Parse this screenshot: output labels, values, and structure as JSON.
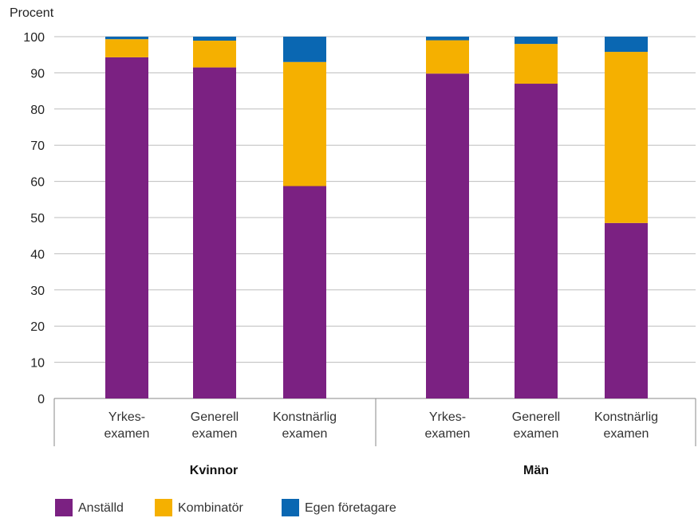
{
  "chart_data": {
    "type": "bar",
    "stacked": true,
    "ylabel": "Procent",
    "ylim": [
      0,
      100
    ],
    "yticks": [
      0,
      10,
      20,
      30,
      40,
      50,
      60,
      70,
      80,
      90,
      100
    ],
    "grid": true,
    "legend_position": "bottom-left",
    "groups": [
      {
        "label": "Kvinnor",
        "categories": [
          [
            "Yrkes-",
            "examen"
          ],
          [
            "Generell",
            "examen"
          ],
          [
            "Konstnärlig",
            "examen"
          ]
        ]
      },
      {
        "label": "Män",
        "categories": [
          [
            "Yrkes-",
            "examen"
          ],
          [
            "Generell",
            "examen"
          ],
          [
            "Konstnärlig",
            "examen"
          ]
        ]
      }
    ],
    "series": [
      {
        "name": "Anställd",
        "color": "#7b2182",
        "values": [
          94.3,
          91.5,
          58.7,
          89.8,
          87.0,
          48.5
        ]
      },
      {
        "name": "Kombinatör",
        "color": "#f5b000",
        "values": [
          5.0,
          7.4,
          34.3,
          9.2,
          11.0,
          47.3
        ]
      },
      {
        "name": "Egen företagare",
        "color": "#0a67b2",
        "values": [
          0.7,
          1.1,
          7.0,
          1.0,
          2.0,
          4.2
        ]
      }
    ]
  }
}
